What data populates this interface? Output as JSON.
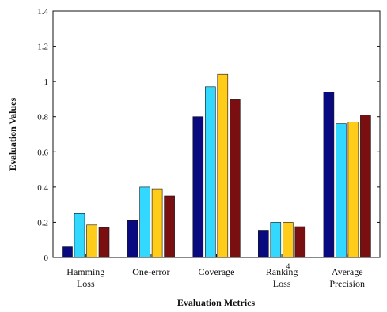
{
  "chart_data": {
    "type": "bar",
    "categories": [
      [
        "Hamming",
        "Loss"
      ],
      [
        "One-error"
      ],
      [
        "Coverage"
      ],
      [
        "Ranking",
        "Loss"
      ],
      [
        "Average",
        "Precision"
      ]
    ],
    "series": [
      {
        "color": "#0a0a80",
        "values": [
          0.06,
          0.21,
          0.8,
          0.155,
          0.94
        ]
      },
      {
        "color": "#33d8ff",
        "values": [
          0.25,
          0.4,
          0.97,
          0.2,
          0.76
        ]
      },
      {
        "color": "#ffcc1a",
        "values": [
          0.185,
          0.39,
          1.04,
          0.2,
          0.77
        ]
      },
      {
        "color": "#7a0f12",
        "values": [
          0.17,
          0.35,
          0.9,
          0.175,
          0.81
        ]
      }
    ],
    "xlabel": "Evaluation Metrics",
    "ylabel": "Evaluation Values",
    "ylim": [
      0,
      1.4
    ],
    "yticks": [
      "0",
      "0.2",
      "0.4",
      "0.6",
      "0.8",
      "1",
      "1.2",
      "1.4"
    ],
    "annotation": "4",
    "grid": false,
    "legend": "none"
  }
}
